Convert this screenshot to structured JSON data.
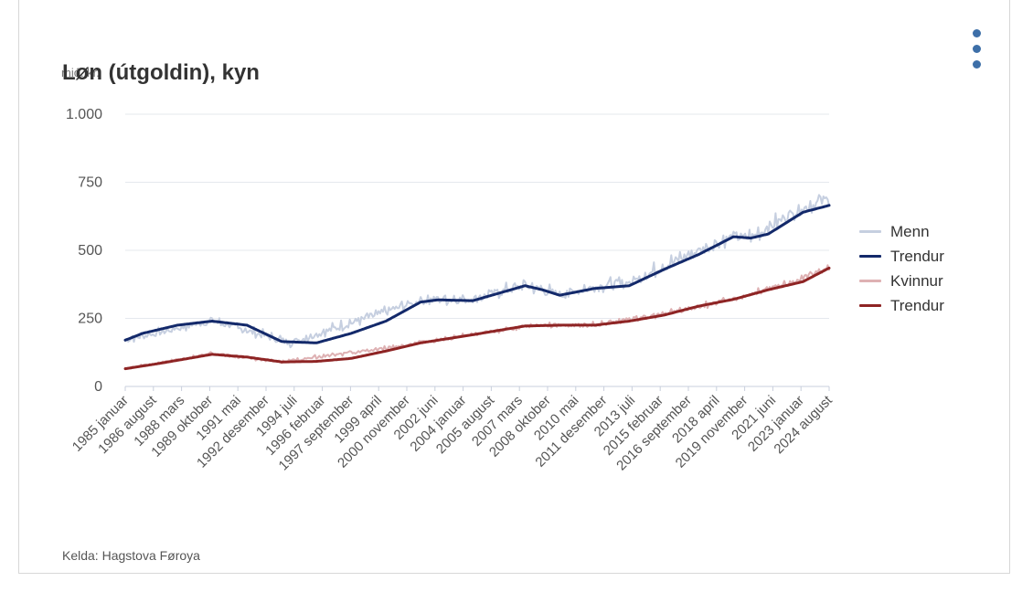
{
  "header": {
    "title": "Løn (útgoldin), kyn",
    "unit": "mió. kr."
  },
  "footer": {
    "source": "Kelda: Hagstova Føroya"
  },
  "menu": {
    "icon": "more-vertical-icon"
  },
  "colors": {
    "menn": "#c6cfe0",
    "menn_trend": "#13296a",
    "kvinnur": "#deb1b3",
    "kvinnur_trend": "#8e2424",
    "grid": "#e5e8ee",
    "menu": "#3d6fa8"
  },
  "legend": [
    {
      "label": "Menn",
      "color": "#c6cfe0"
    },
    {
      "label": "Trendur",
      "color": "#13296a"
    },
    {
      "label": "Kvinnur",
      "color": "#deb1b3"
    },
    {
      "label": "Trendur",
      "color": "#8e2424"
    }
  ],
  "chart_data": {
    "type": "line",
    "ylim": [
      0,
      1000
    ],
    "yticks": [
      0,
      250,
      500,
      750,
      1000
    ],
    "ytick_labels": [
      "0",
      "250",
      "500",
      "750",
      "1.000"
    ],
    "x_range": [
      "1985-01",
      "2025-06"
    ],
    "xtick_labels": [
      "1985 januar",
      "1986 august",
      "1988 mars",
      "1989 oktober",
      "1991 mai",
      "1992 desember",
      "1994 juli",
      "1996 februar",
      "1997 september",
      "1999 april",
      "2000 november",
      "2002 juni",
      "2004 januar",
      "2005 august",
      "2007 mars",
      "2008 oktober",
      "2010 mai",
      "2011 desember",
      "2013 juli",
      "2015 februar",
      "2016 september",
      "2018 april",
      "2019 november",
      "2021 juni",
      "2023 januar",
      "2024 august"
    ],
    "grid": true,
    "legend_position": "right",
    "series": [
      {
        "name": "Menn",
        "kind": "monthly",
        "x": [
          1985,
          1990,
          1994.5,
          2002,
          2003,
          2005,
          2008,
          2010,
          2012,
          2014,
          2017,
          2020,
          2021,
          2023.5,
          2025.5
        ],
        "y": [
          170,
          240,
          160,
          315,
          318,
          320,
          370,
          335,
          365,
          380,
          470,
          550,
          545,
          640,
          690
        ],
        "noise": 30
      },
      {
        "name": "Trendur",
        "kind": "trend",
        "x": [
          1985,
          1986,
          1988,
          1990,
          1992,
          1994,
          1996,
          1998,
          2000,
          2002,
          2003,
          2005,
          2008,
          2009,
          2010,
          2012,
          2014,
          2016,
          2018,
          2020,
          2021,
          2022,
          2024,
          2025.5
        ],
        "y": [
          170,
          195,
          225,
          240,
          225,
          165,
          160,
          195,
          240,
          310,
          318,
          315,
          370,
          355,
          335,
          360,
          370,
          430,
          485,
          550,
          545,
          560,
          640,
          665
        ]
      },
      {
        "name": "Kvinnur",
        "kind": "monthly",
        "x": [
          1985,
          1990,
          1994,
          2000,
          2005,
          2008.5,
          2012,
          2016,
          2020,
          2023,
          2025.5
        ],
        "y": [
          65,
          120,
          90,
          140,
          190,
          225,
          225,
          265,
          320,
          375,
          435
        ],
        "noise": 12
      },
      {
        "name": "Trendur",
        "kind": "trend",
        "x": [
          1985,
          1987,
          1990,
          1992,
          1994,
          1996,
          1998,
          2000,
          2002,
          2005,
          2008,
          2010,
          2012,
          2014,
          2016,
          2018,
          2020,
          2022,
          2024,
          2025.5
        ],
        "y": [
          65,
          85,
          118,
          108,
          90,
          92,
          103,
          130,
          160,
          190,
          222,
          225,
          225,
          240,
          262,
          295,
          320,
          355,
          385,
          435
        ]
      }
    ]
  }
}
